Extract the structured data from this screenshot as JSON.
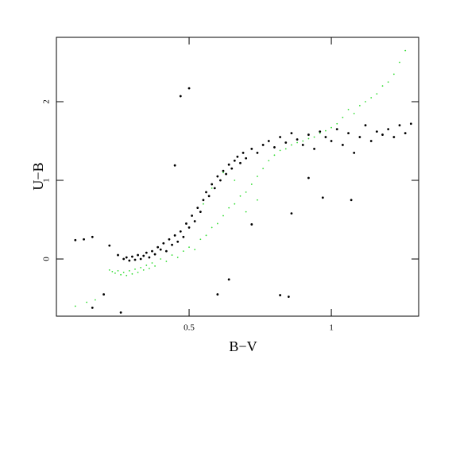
{
  "chart_data": {
    "type": "scatter",
    "xlabel": "B−V",
    "ylabel": "U−B",
    "xlim": [
      0.0335,
      1.307
    ],
    "ylim": [
      -0.727,
      2.818
    ],
    "xticks": [
      0.5,
      1
    ],
    "yticks": [
      0,
      1,
      2
    ],
    "series": [
      {
        "name": "black",
        "color": "#000000",
        "x": [
          0.1,
          0.13,
          0.16,
          0.22,
          0.25,
          0.27,
          0.28,
          0.29,
          0.3,
          0.31,
          0.32,
          0.33,
          0.34,
          0.35,
          0.36,
          0.37,
          0.38,
          0.39,
          0.4,
          0.41,
          0.42,
          0.43,
          0.44,
          0.45,
          0.46,
          0.47,
          0.48,
          0.49,
          0.5,
          0.51,
          0.52,
          0.53,
          0.54,
          0.55,
          0.56,
          0.57,
          0.58,
          0.59,
          0.6,
          0.61,
          0.62,
          0.63,
          0.64,
          0.65,
          0.66,
          0.67,
          0.68,
          0.69,
          0.7,
          0.72,
          0.74,
          0.76,
          0.78,
          0.8,
          0.82,
          0.84,
          0.86,
          0.88,
          0.9,
          0.92,
          0.94,
          0.96,
          0.98,
          1.0,
          1.02,
          1.04,
          1.06,
          1.08,
          1.1,
          1.12,
          1.14,
          1.16,
          1.18,
          1.2,
          1.22,
          1.24,
          1.26,
          1.28,
          0.47,
          0.5,
          0.45,
          0.6,
          0.82,
          0.85,
          0.97,
          1.07,
          0.2,
          0.26,
          0.64,
          0.72,
          0.86,
          0.92,
          0.16
        ],
        "y": [
          0.24,
          0.25,
          0.28,
          0.17,
          0.05,
          0.0,
          0.02,
          -0.02,
          0.03,
          -0.01,
          0.05,
          0.0,
          0.04,
          0.08,
          0.02,
          0.1,
          0.06,
          0.15,
          0.12,
          0.2,
          0.1,
          0.25,
          0.18,
          0.3,
          0.22,
          0.35,
          0.28,
          0.45,
          0.4,
          0.55,
          0.48,
          0.65,
          0.6,
          0.75,
          0.85,
          0.8,
          0.95,
          0.9,
          1.05,
          1.0,
          1.12,
          1.08,
          1.2,
          1.15,
          1.25,
          1.3,
          1.22,
          1.35,
          1.28,
          1.4,
          1.35,
          1.45,
          1.5,
          1.42,
          1.55,
          1.48,
          1.6,
          1.52,
          1.45,
          1.58,
          1.4,
          1.62,
          1.55,
          1.5,
          1.65,
          1.45,
          1.6,
          1.35,
          1.55,
          1.7,
          1.5,
          1.62,
          1.58,
          1.65,
          1.55,
          1.7,
          1.6,
          1.72,
          2.07,
          2.17,
          1.19,
          -0.45,
          -0.46,
          -0.48,
          0.78,
          0.75,
          -0.45,
          -0.68,
          -0.26,
          0.44,
          0.58,
          1.03,
          -0.62
        ]
      },
      {
        "name": "green",
        "color": "#33dd33",
        "x": [
          0.1,
          0.14,
          0.17,
          0.22,
          0.23,
          0.24,
          0.25,
          0.26,
          0.27,
          0.28,
          0.29,
          0.3,
          0.31,
          0.32,
          0.33,
          0.34,
          0.35,
          0.36,
          0.37,
          0.38,
          0.4,
          0.42,
          0.44,
          0.46,
          0.48,
          0.5,
          0.52,
          0.54,
          0.56,
          0.58,
          0.6,
          0.62,
          0.64,
          0.66,
          0.68,
          0.7,
          0.72,
          0.74,
          0.76,
          0.78,
          0.8,
          0.82,
          0.84,
          0.86,
          0.88,
          0.9,
          0.92,
          0.94,
          0.96,
          0.98,
          1.0,
          1.02,
          1.04,
          1.06,
          1.08,
          1.1,
          1.12,
          1.14,
          1.16,
          1.18,
          1.2,
          1.22,
          1.24,
          1.26,
          0.58,
          0.62,
          0.55,
          0.66,
          0.7,
          0.74
        ],
        "y": [
          -0.6,
          -0.55,
          -0.52,
          -0.14,
          -0.16,
          -0.18,
          -0.15,
          -0.2,
          -0.17,
          -0.21,
          -0.15,
          -0.19,
          -0.13,
          -0.17,
          -0.11,
          -0.14,
          -0.08,
          -0.12,
          -0.05,
          -0.09,
          0.0,
          -0.03,
          0.05,
          0.02,
          0.1,
          0.15,
          0.12,
          0.25,
          0.3,
          0.4,
          0.45,
          0.55,
          0.65,
          0.7,
          0.8,
          0.85,
          0.95,
          1.05,
          1.15,
          1.25,
          1.32,
          1.38,
          1.4,
          1.45,
          1.48,
          1.5,
          1.53,
          1.55,
          1.6,
          1.63,
          1.67,
          1.72,
          1.8,
          1.9,
          1.85,
          1.95,
          2.0,
          2.05,
          2.1,
          2.2,
          2.25,
          2.35,
          2.5,
          2.65,
          0.9,
          1.1,
          0.7,
          1.0,
          0.6,
          0.75
        ]
      }
    ]
  }
}
